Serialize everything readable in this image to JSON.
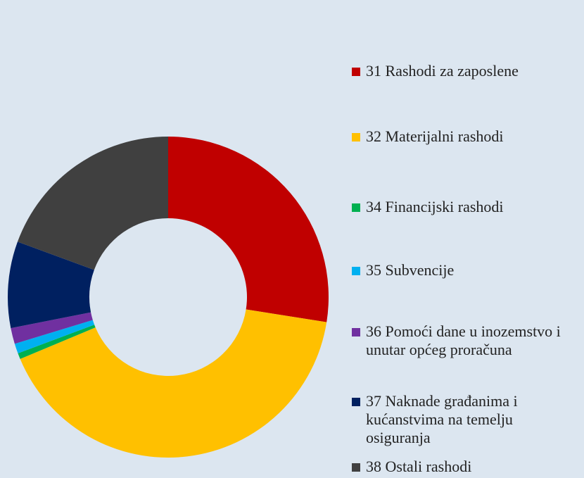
{
  "chart_data": {
    "type": "donut",
    "categories": [
      "31  Rashodi za zaposlene",
      "32  Materijalni rashodi",
      "34  Financijski rashodi",
      "35 Subvencije",
      "36 Pomoći dane u inozemstvo i unutar općeg proračuna",
      "37 Naknade građanima i kućanstvima na temelju osiguranja",
      "38 Ostali rashodi"
    ],
    "values": [
      27.5,
      41.2,
      0.6,
      1.0,
      1.6,
      8.7,
      19.4
    ],
    "colors": [
      "#c00000",
      "#ffc000",
      "#00b050",
      "#00b0f0",
      "#7030a0",
      "#002060",
      "#404040"
    ]
  }
}
